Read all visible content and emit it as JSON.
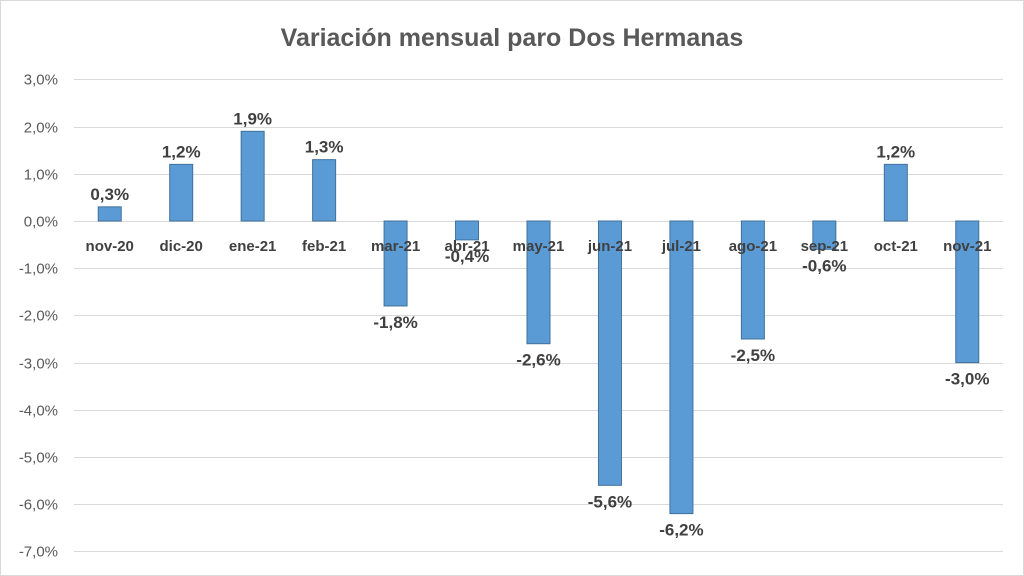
{
  "chart_data": {
    "type": "bar",
    "title": "Variación mensual paro Dos Hermanas",
    "xlabel": "",
    "ylabel": "",
    "ylim": [
      -7,
      3
    ],
    "y_ticks": [
      3,
      2,
      1,
      0,
      -1,
      -2,
      -3,
      -4,
      -5,
      -6,
      -7
    ],
    "y_tick_labels": [
      "3,0%",
      "2,0%",
      "1,0%",
      "0,0%",
      "-1,0%",
      "-2,0%",
      "-3,0%",
      "-4,0%",
      "-5,0%",
      "-6,0%",
      "-7,0%"
    ],
    "categories": [
      "nov-20",
      "dic-20",
      "ene-21",
      "feb-21",
      "mar-21",
      "abr-21",
      "may-21",
      "jun-21",
      "jul-21",
      "ago-21",
      "sep-21",
      "oct-21",
      "nov-21"
    ],
    "values": [
      0.3,
      1.2,
      1.9,
      1.3,
      -1.8,
      -0.4,
      -2.6,
      -5.6,
      -6.2,
      -2.5,
      -0.6,
      1.2,
      -3.0
    ],
    "data_labels": [
      "0,3%",
      "1,2%",
      "1,9%",
      "1,3%",
      "-1,8%",
      "-0,4%",
      "-2,6%",
      "-5,6%",
      "-6,2%",
      "-2,5%",
      "-0,6%",
      "1,2%",
      "-3,0%"
    ],
    "grid": true,
    "legend": "none",
    "bar_color": "#5b9bd5",
    "bar_edge_color": "#41719c"
  }
}
